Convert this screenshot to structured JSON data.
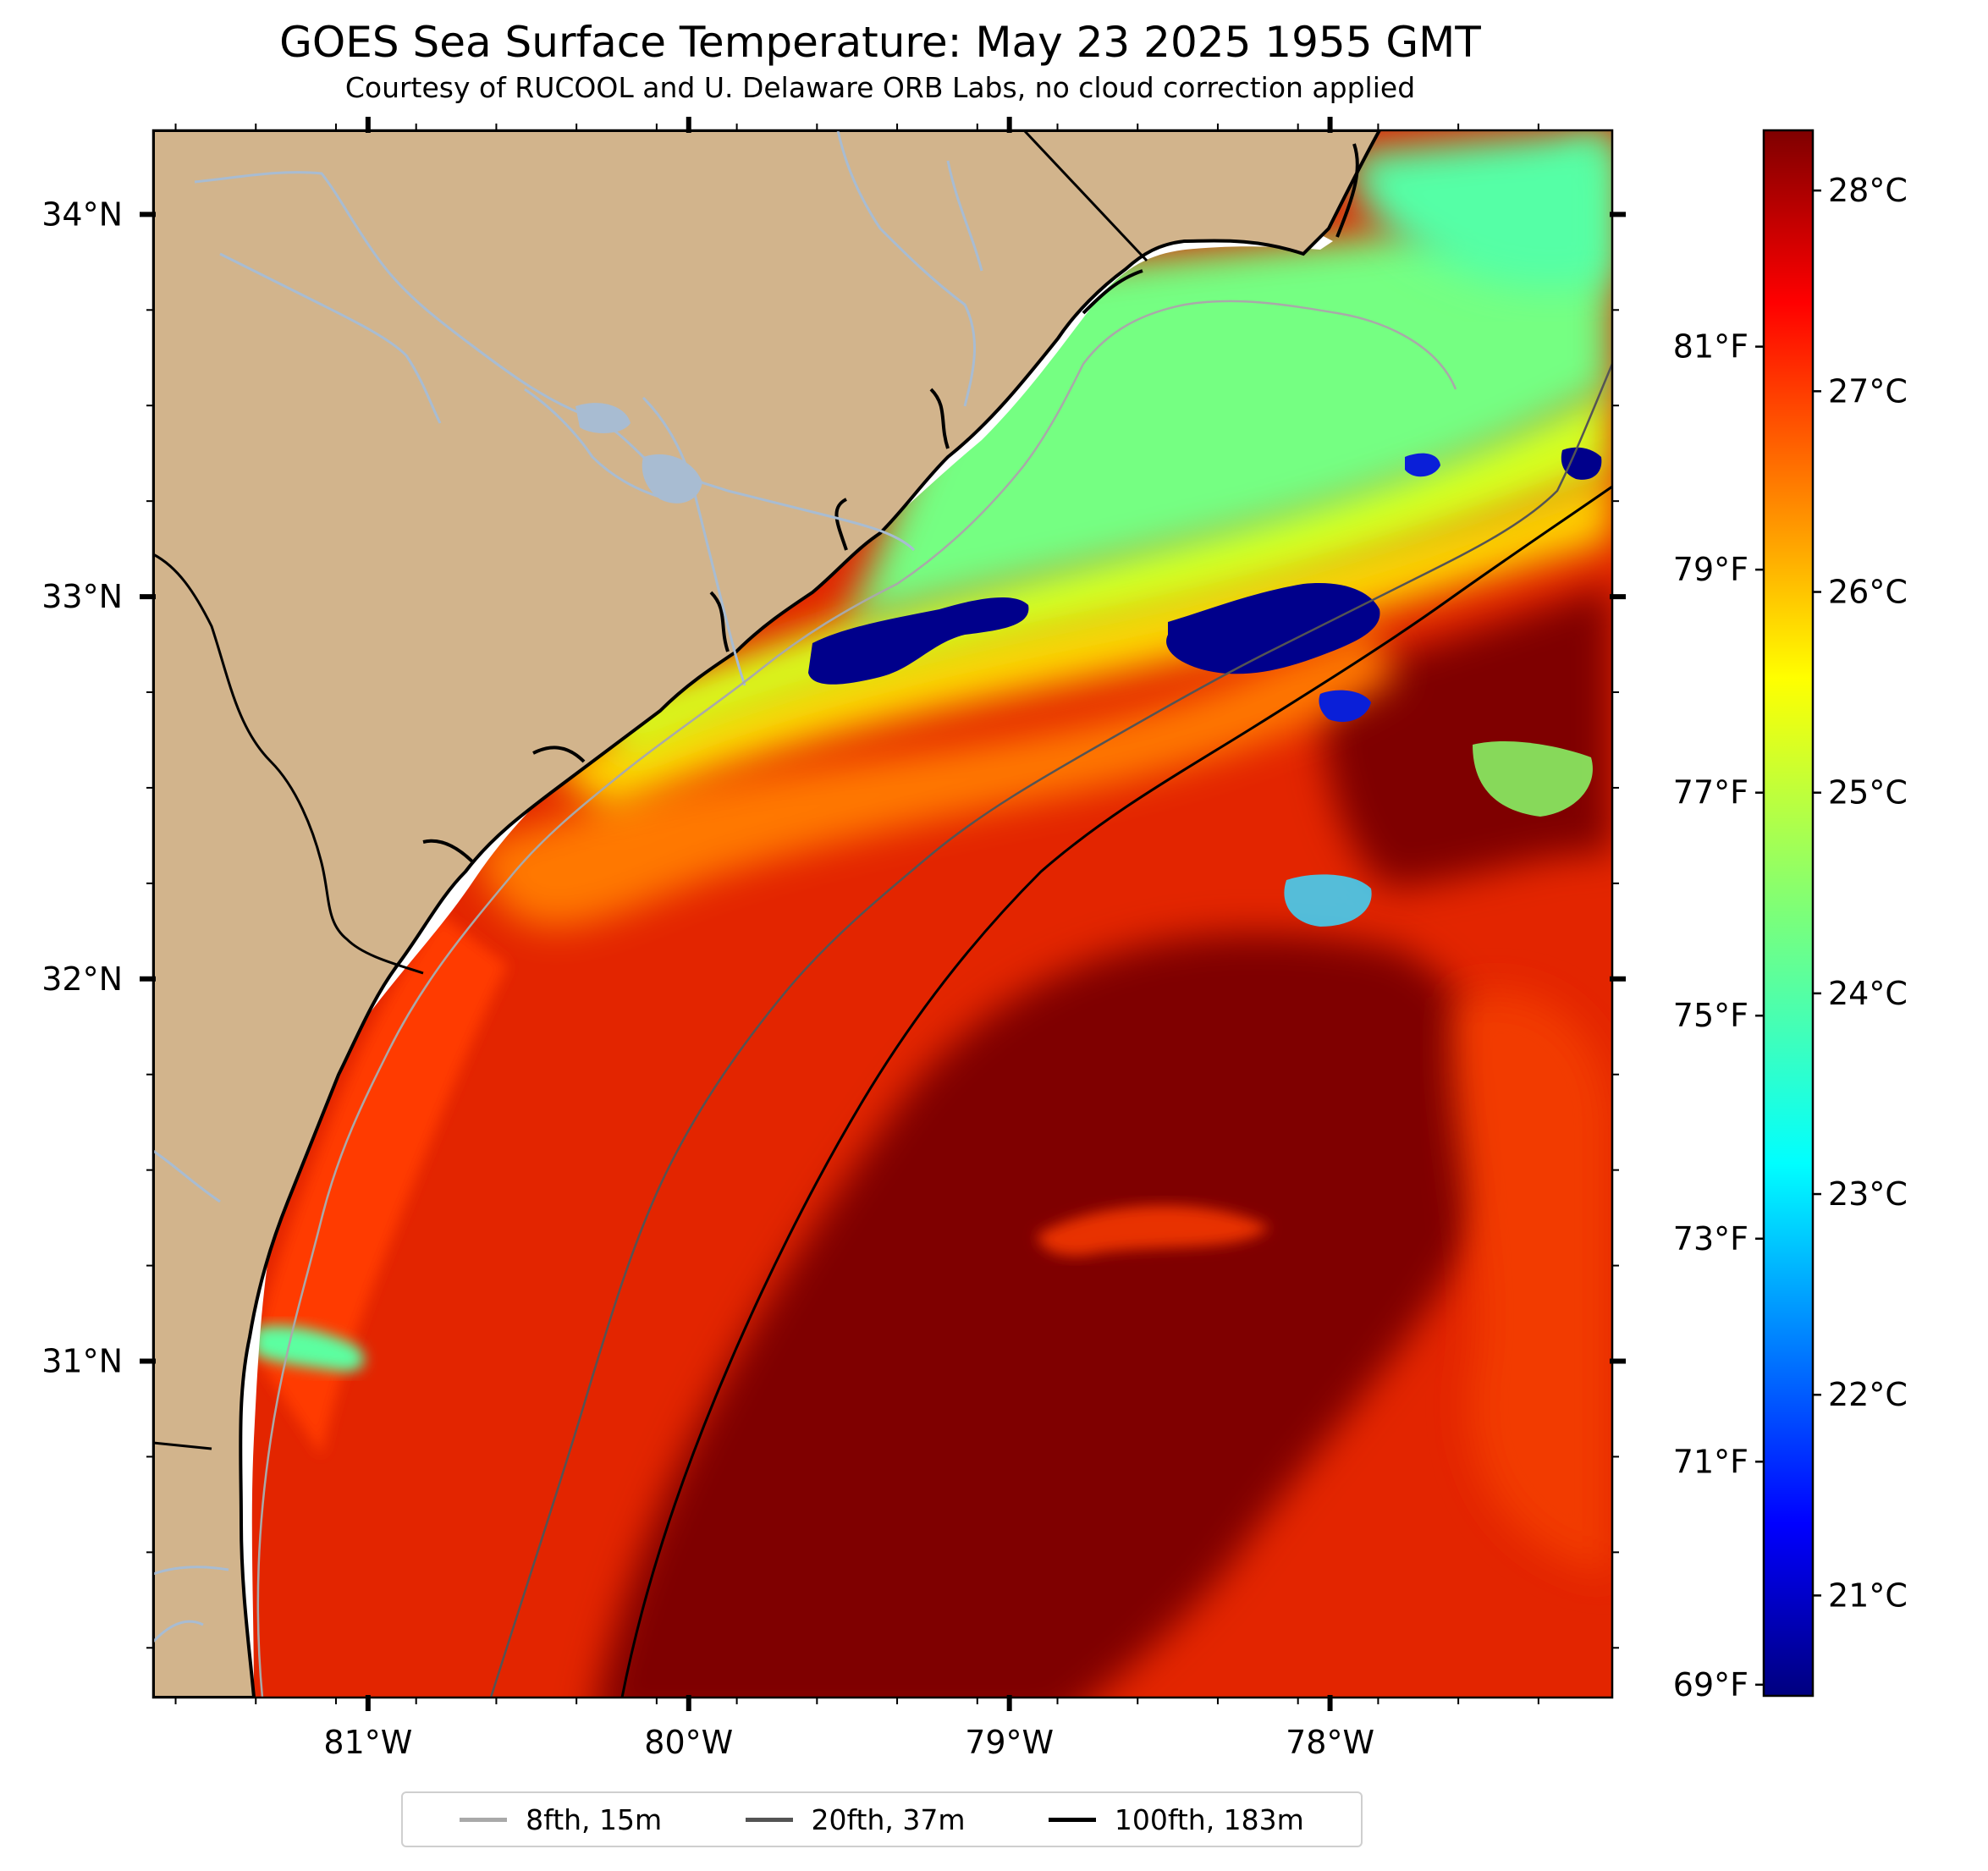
{
  "title": "GOES Sea Surface Temperature: May 23 2025 1955 GMT",
  "subtitle": "Courtesy of RUCOOL and U. Delaware ORB Labs, no cloud correction applied",
  "map": {
    "extent": {
      "lon": [
        -81.67,
        -77.12
      ],
      "lat": [
        30.12,
        34.22
      ]
    },
    "lat_ticks": [
      {
        "value": 34,
        "label": "34°N"
      },
      {
        "value": 33,
        "label": "33°N"
      },
      {
        "value": 32,
        "label": "32°N"
      },
      {
        "value": 31,
        "label": "31°N"
      }
    ],
    "lon_ticks": [
      {
        "value": -81,
        "label": "81°W"
      },
      {
        "value": -80,
        "label": "80°W"
      },
      {
        "value": -79,
        "label": "79°W"
      },
      {
        "value": -78,
        "label": "78°W"
      }
    ],
    "colors": {
      "land": "#d2b48c",
      "rivers": "#a8bcd2",
      "coastline": "#000000",
      "clouds": "#00008b",
      "no_data": "#ffffff"
    }
  },
  "colorbar": {
    "colormap": "jet",
    "celsius_range": [
      20.5,
      28.3
    ],
    "celsius_ticks": [
      {
        "value": 28,
        "label": "28°C"
      },
      {
        "value": 27,
        "label": "27°C"
      },
      {
        "value": 26,
        "label": "26°C"
      },
      {
        "value": 25,
        "label": "25°C"
      },
      {
        "value": 24,
        "label": "24°C"
      },
      {
        "value": 23,
        "label": "23°C"
      },
      {
        "value": 22,
        "label": "22°C"
      },
      {
        "value": 21,
        "label": "21°C"
      }
    ],
    "fahrenheit_ticks": [
      {
        "value": 81,
        "label": "81°F"
      },
      {
        "value": 79,
        "label": "79°F"
      },
      {
        "value": 77,
        "label": "77°F"
      },
      {
        "value": 75,
        "label": "75°F"
      },
      {
        "value": 73,
        "label": "73°F"
      },
      {
        "value": 71,
        "label": "71°F"
      },
      {
        "value": 69,
        "label": "69°F"
      }
    ]
  },
  "legend": {
    "items": [
      {
        "label": "8fth, 15m",
        "color": "#a9a9a9"
      },
      {
        "label": "20fth, 37m",
        "color": "#545454"
      },
      {
        "label": "100fth, 183m",
        "color": "#000000"
      }
    ]
  }
}
